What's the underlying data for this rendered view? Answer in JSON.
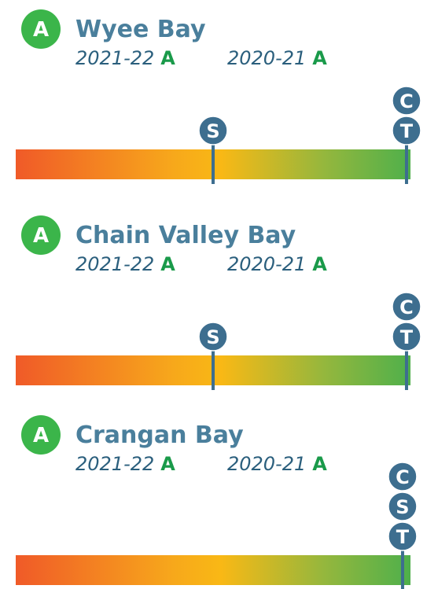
{
  "sites": [
    {
      "grade": "A",
      "name": "Wyee Bay",
      "years": [
        {
          "label": "2021-22",
          "grade": "A"
        },
        {
          "label": "2020-21",
          "grade": "A"
        }
      ],
      "markers": [
        {
          "label": "C",
          "value": 99
        },
        {
          "label": "S",
          "value": 50
        },
        {
          "label": "T",
          "value": 99
        }
      ]
    },
    {
      "grade": "A",
      "name": "Chain Valley Bay",
      "years": [
        {
          "label": "2021-22",
          "grade": "A"
        },
        {
          "label": "2020-21",
          "grade": "A"
        }
      ],
      "markers": [
        {
          "label": "C",
          "value": 99
        },
        {
          "label": "S",
          "value": 50
        },
        {
          "label": "T",
          "value": 99
        }
      ]
    },
    {
      "grade": "A",
      "name": "Crangan Bay",
      "years": [
        {
          "label": "2021-22",
          "grade": "A"
        },
        {
          "label": "2020-21",
          "grade": "A"
        }
      ],
      "markers": [
        {
          "label": "C",
          "value": 98
        },
        {
          "label": "S",
          "value": 98
        },
        {
          "label": "T",
          "value": 98
        }
      ]
    }
  ],
  "xlim": [
    0,
    100
  ]
}
